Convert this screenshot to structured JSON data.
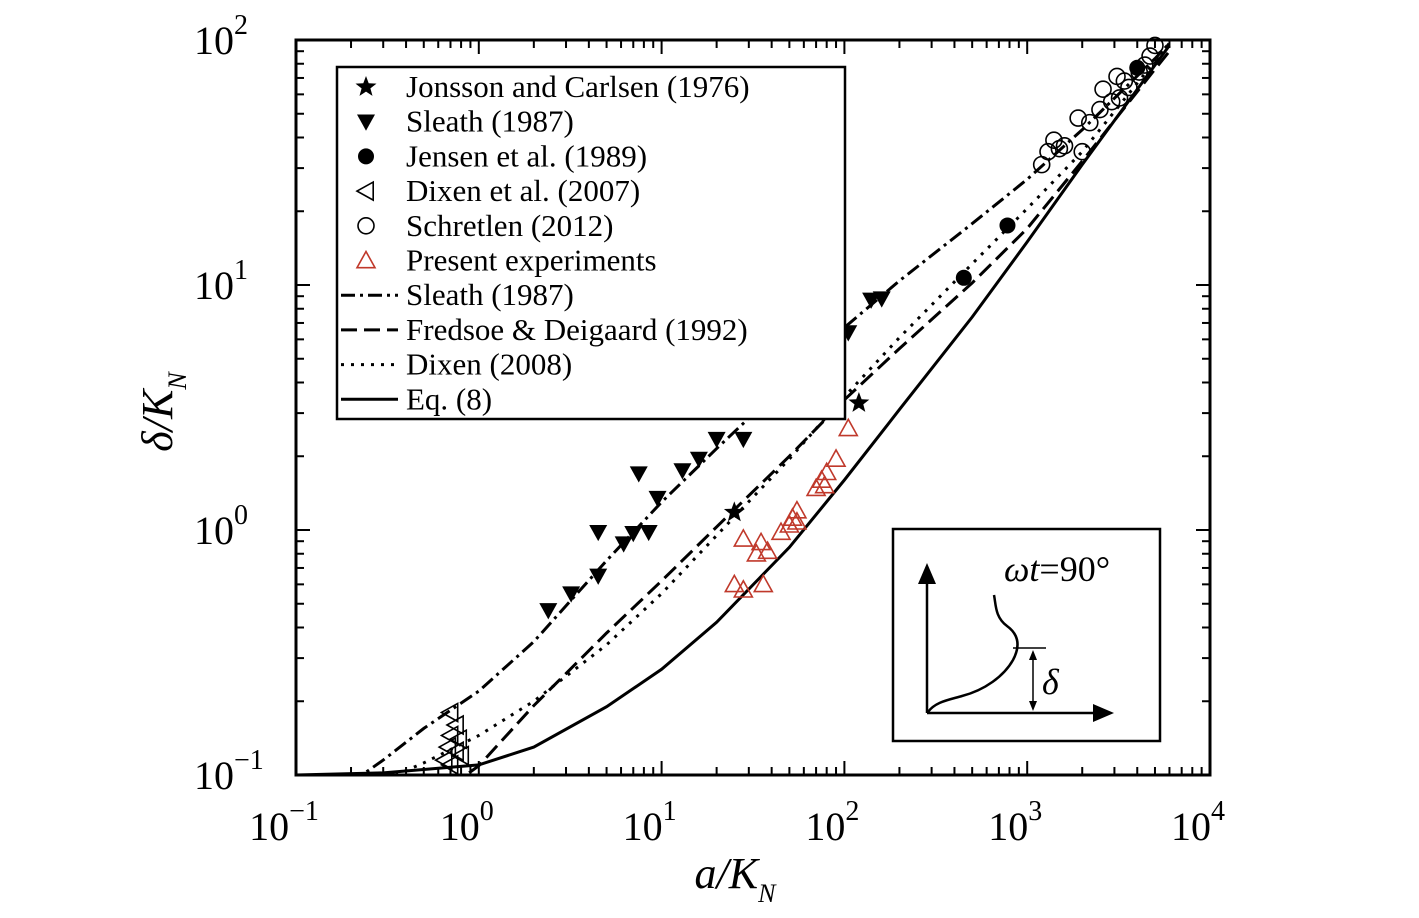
{
  "chart_data": {
    "type": "scatter",
    "xlabel_main": "a/K",
    "xlabel_sub": "N",
    "ylabel_main": "δ/K",
    "ylabel_sub": "N",
    "xscale": "log",
    "yscale": "log",
    "xlim": [
      0.1,
      10000
    ],
    "ylim": [
      0.1,
      100
    ],
    "grid": false,
    "legend_position": "top-left",
    "x_ticks": [
      {
        "value": 0.1,
        "base": "10",
        "exp": "−1"
      },
      {
        "value": 1,
        "base": "10",
        "exp": "0"
      },
      {
        "value": 10,
        "base": "10",
        "exp": "1"
      },
      {
        "value": 100,
        "base": "10",
        "exp": "2"
      },
      {
        "value": 1000,
        "base": "10",
        "exp": "3"
      },
      {
        "value": 10000,
        "base": "10",
        "exp": "4"
      }
    ],
    "y_ticks": [
      {
        "value": 0.1,
        "base": "10",
        "exp": "−1"
      },
      {
        "value": 1,
        "base": "10",
        "exp": "0"
      },
      {
        "value": 10,
        "base": "10",
        "exp": "1"
      },
      {
        "value": 100,
        "base": "10",
        "exp": "2"
      }
    ],
    "series": [
      {
        "name": "Jonsson and Carlsen (1976)",
        "kind": "points",
        "marker": "star",
        "color": "#000000",
        "points": [
          [
            25,
            1.18
          ],
          [
            120,
            3.3
          ]
        ]
      },
      {
        "name": "Sleath (1987)",
        "kind": "points",
        "marker": "triangle-down",
        "color": "#000000",
        "points": [
          [
            2.4,
            0.47
          ],
          [
            3.2,
            0.55
          ],
          [
            4.5,
            0.65
          ],
          [
            4.5,
            0.98
          ],
          [
            6.2,
            0.88
          ],
          [
            7,
            0.97
          ],
          [
            8.5,
            0.98
          ],
          [
            7.5,
            1.7
          ],
          [
            9.5,
            1.35
          ],
          [
            13,
            1.75
          ],
          [
            16,
            1.95
          ],
          [
            20,
            2.35
          ],
          [
            28,
            2.35
          ],
          [
            75,
            4.8
          ],
          [
            105,
            6.4
          ],
          [
            140,
            8.7
          ],
          [
            160,
            8.8
          ]
        ]
      },
      {
        "name": "Jensen et al. (1989)",
        "kind": "points",
        "marker": "circle-filled",
        "color": "#000000",
        "points": [
          [
            450,
            10.7
          ],
          [
            780,
            17.5
          ],
          [
            4000,
            77
          ]
        ]
      },
      {
        "name": "Dixen et al. (2007)",
        "kind": "points",
        "marker": "triangle-left",
        "color": "#000000",
        "points": [
          [
            0.7,
            0.18
          ],
          [
            0.75,
            0.16
          ],
          [
            0.7,
            0.145
          ],
          [
            0.78,
            0.14
          ],
          [
            0.68,
            0.13
          ],
          [
            0.75,
            0.125
          ],
          [
            0.65,
            0.115
          ],
          [
            0.8,
            0.12
          ],
          [
            0.7,
            0.11
          ]
        ]
      },
      {
        "name": "Schretlen (2012)",
        "kind": "points",
        "marker": "circle-open",
        "color": "#000000",
        "points": [
          [
            1200,
            31
          ],
          [
            1300,
            35
          ],
          [
            1400,
            39
          ],
          [
            1500,
            36
          ],
          [
            1600,
            37
          ],
          [
            1900,
            48
          ],
          [
            2000,
            35
          ],
          [
            2200,
            46
          ],
          [
            2500,
            52
          ],
          [
            2600,
            63
          ],
          [
            2900,
            56
          ],
          [
            3100,
            71
          ],
          [
            3200,
            58
          ],
          [
            3400,
            68
          ],
          [
            3600,
            64
          ],
          [
            4100,
            74
          ],
          [
            4400,
            79
          ],
          [
            4700,
            86
          ],
          [
            5000,
            95
          ]
        ]
      },
      {
        "name": "Present experiments",
        "kind": "points",
        "marker": "triangle-up-open",
        "color": "#c0392b",
        "points": [
          [
            25,
            0.6
          ],
          [
            28,
            0.92
          ],
          [
            28,
            0.57
          ],
          [
            33,
            0.8
          ],
          [
            35,
            0.89
          ],
          [
            36,
            0.6
          ],
          [
            38,
            0.82
          ],
          [
            45,
            0.98
          ],
          [
            50,
            1.05
          ],
          [
            52,
            1.12
          ],
          [
            55,
            1.08
          ],
          [
            55,
            1.2
          ],
          [
            70,
            1.48
          ],
          [
            75,
            1.6
          ],
          [
            78,
            1.52
          ],
          [
            80,
            1.72
          ],
          [
            90,
            1.95
          ],
          [
            105,
            2.6
          ]
        ]
      },
      {
        "name": "Sleath (1987)",
        "kind": "line",
        "dash": "dashdot",
        "color": "#000000",
        "points": [
          [
            0.2,
            0.093
          ],
          [
            0.3,
            0.115
          ],
          [
            0.5,
            0.155
          ],
          [
            1,
            0.22
          ],
          [
            2,
            0.35
          ],
          [
            5,
            0.75
          ],
          [
            10,
            1.3
          ],
          [
            20,
            2.15
          ],
          [
            50,
            4.1
          ],
          [
            100,
            6.7
          ],
          [
            200,
            10.4
          ],
          [
            500,
            17.8
          ],
          [
            1000,
            27
          ],
          [
            2000,
            43
          ],
          [
            5000,
            84
          ],
          [
            6000,
            97
          ]
        ]
      },
      {
        "name": "Fredsoe & Deigaard (1992)",
        "kind": "line",
        "dash": "dashed",
        "color": "#000000",
        "points": [
          [
            0.7,
            0.09
          ],
          [
            1,
            0.109
          ],
          [
            2,
            0.192
          ],
          [
            5,
            0.38
          ],
          [
            10,
            0.62
          ],
          [
            20,
            1.03
          ],
          [
            50,
            2.0
          ],
          [
            100,
            3.4
          ],
          [
            200,
            5.5
          ],
          [
            500,
            10.2
          ],
          [
            1000,
            17
          ],
          [
            2000,
            32
          ],
          [
            5000,
            76
          ],
          [
            6000,
            90
          ]
        ]
      },
      {
        "name": "Dixen (2008)",
        "kind": "line",
        "dash": "dotted",
        "color": "#000000",
        "points": [
          [
            0.35,
            0.1
          ],
          [
            0.5,
            0.112
          ],
          [
            1,
            0.145
          ],
          [
            2,
            0.2
          ],
          [
            5,
            0.34
          ],
          [
            10,
            0.55
          ],
          [
            20,
            0.95
          ],
          [
            50,
            1.95
          ],
          [
            100,
            3.5
          ],
          [
            200,
            6.1
          ],
          [
            500,
            12.2
          ],
          [
            1000,
            20.5
          ],
          [
            2000,
            35
          ],
          [
            5000,
            82
          ],
          [
            6000,
            97
          ]
        ]
      },
      {
        "name": "Eq. (8)",
        "kind": "line",
        "dash": "solid",
        "color": "#000000",
        "points": [
          [
            0.1,
            0.1
          ],
          [
            0.3,
            0.102
          ],
          [
            1,
            0.11
          ],
          [
            2,
            0.13
          ],
          [
            5,
            0.19
          ],
          [
            10,
            0.27
          ],
          [
            20,
            0.42
          ],
          [
            50,
            0.85
          ],
          [
            100,
            1.6
          ],
          [
            200,
            3.1
          ],
          [
            500,
            7.4
          ],
          [
            1000,
            15
          ],
          [
            2000,
            31
          ],
          [
            5000,
            79
          ],
          [
            6000,
            95
          ]
        ]
      }
    ],
    "inset": {
      "label_omega_t": "ωt",
      "label_value": "=90°",
      "label_delta": "δ"
    }
  }
}
